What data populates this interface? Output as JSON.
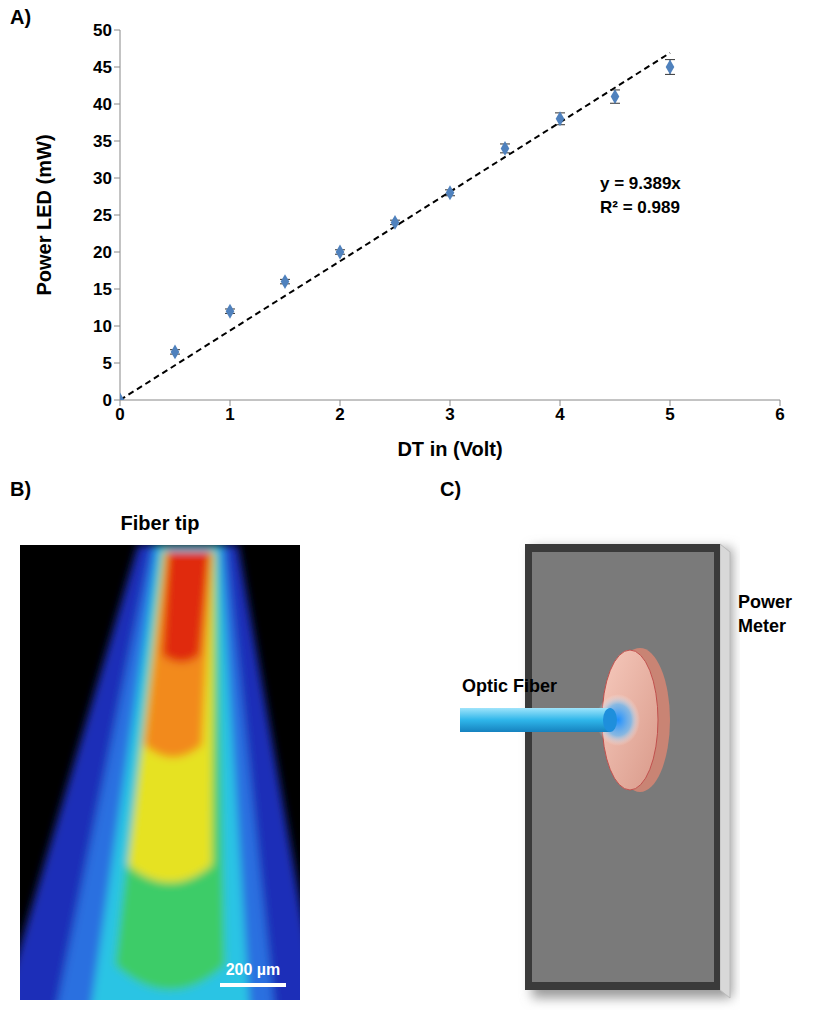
{
  "chart_data": {
    "type": "scatter",
    "xlabel": "DT in (Volt)",
    "ylabel": "Power LED (mW)",
    "xlim": [
      0,
      6
    ],
    "xticks": [
      0,
      1,
      2,
      3,
      4,
      5,
      6
    ],
    "ylim": [
      0,
      50
    ],
    "yticks": [
      0,
      5,
      10,
      15,
      20,
      25,
      30,
      35,
      40,
      45,
      50
    ],
    "grid": false,
    "annotations": [
      "y = 9.389x",
      "R² = 0.989"
    ],
    "series": [
      {
        "type": "scatter",
        "color": "#4f81bd",
        "marker": "diamond",
        "x": [
          0,
          0.5,
          1,
          1.5,
          2,
          2.5,
          3,
          3.5,
          4,
          4.5,
          5
        ],
        "values": [
          0,
          6.5,
          12,
          16,
          20,
          24,
          28,
          34,
          38,
          41,
          45
        ],
        "errors": [
          0,
          0.3,
          0.3,
          0.3,
          0.3,
          0.3,
          0.4,
          0.6,
          0.8,
          0.9,
          1
        ]
      },
      {
        "type": "line",
        "color": "#000000",
        "line_style": "dashed",
        "x": [
          0,
          5
        ],
        "values": [
          0,
          46.9
        ]
      }
    ]
  },
  "figure": {
    "panel_a": {
      "letter": "A)"
    },
    "panel_b": {
      "letter": "B)",
      "title": "Fiber tip",
      "scale_bar": "200 µm"
    },
    "panel_c": {
      "letter": "C)",
      "fiber_label": "Optic Fiber",
      "meter_label": "Power Meter"
    }
  }
}
